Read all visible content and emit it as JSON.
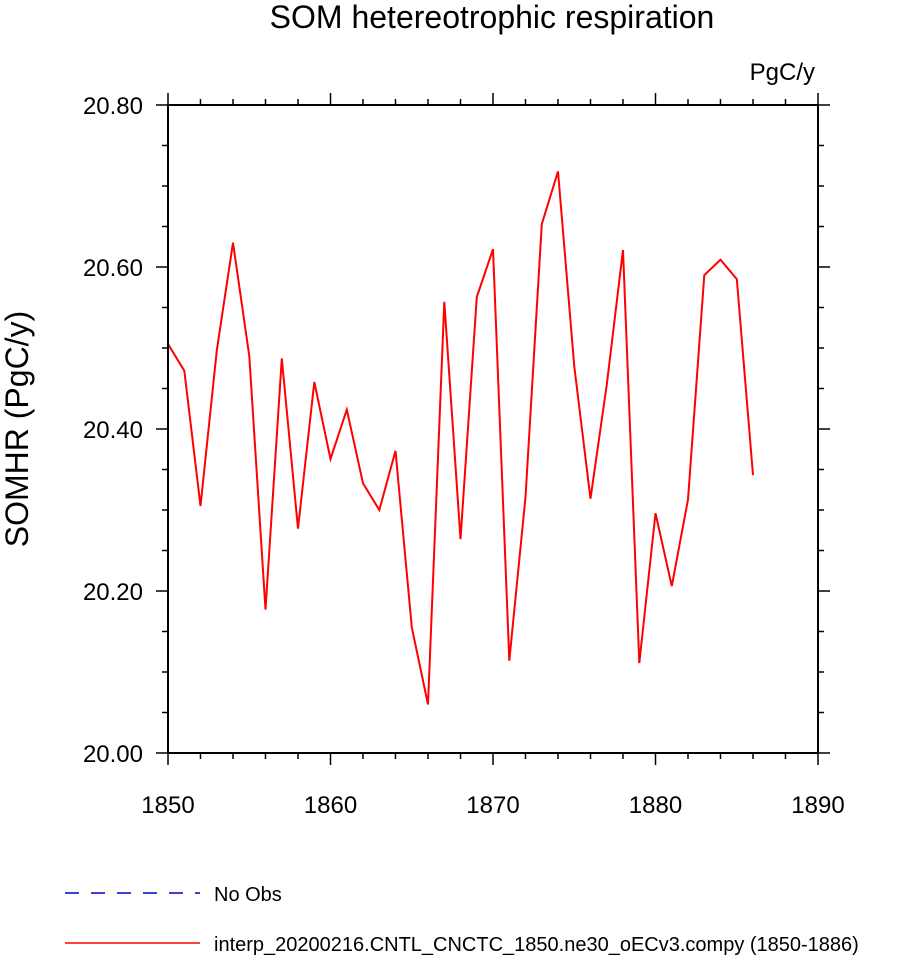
{
  "chart_data": {
    "type": "line",
    "title": "SOM hetereotrophic respiration",
    "units_label": "PgC/y",
    "xlabel": "",
    "ylabel": "SOMHR  (PgC/y)",
    "xlim": [
      1850,
      1890
    ],
    "ylim": [
      20.0,
      20.8
    ],
    "x_ticks": [
      "1850",
      "1860",
      "1870",
      "1880",
      "1890"
    ],
    "y_ticks": [
      "20.00",
      "20.20",
      "20.40",
      "20.60",
      "20.80"
    ],
    "grid": false,
    "legend_position": "bottom",
    "series": [
      {
        "name": "interp_20200216.CNTL_CNCTC_1850.ne30_oECv3.compy (1850-1886)",
        "color": "#ff0000",
        "style": "solid",
        "x": [
          1850,
          1851,
          1852,
          1853,
          1854,
          1855,
          1856,
          1857,
          1858,
          1859,
          1860,
          1861,
          1862,
          1863,
          1864,
          1865,
          1866,
          1867,
          1868,
          1869,
          1870,
          1871,
          1872,
          1873,
          1874,
          1875,
          1876,
          1877,
          1878,
          1879,
          1880,
          1881,
          1882,
          1883,
          1884,
          1885,
          1886
        ],
        "y": [
          20.505,
          20.472,
          20.305,
          20.497,
          20.63,
          20.49,
          20.177,
          20.487,
          20.277,
          20.458,
          20.363,
          20.424,
          20.333,
          20.3,
          20.373,
          20.155,
          20.06,
          20.557,
          20.264,
          20.563,
          20.622,
          20.114,
          20.316,
          20.653,
          20.718,
          20.477,
          20.314,
          20.455,
          20.621,
          20.111,
          20.296,
          20.206,
          20.313,
          20.59,
          20.609,
          20.585,
          20.343
        ]
      },
      {
        "name": "No Obs",
        "color": "#0000cc",
        "style": "dashed",
        "x": [],
        "y": []
      }
    ]
  }
}
